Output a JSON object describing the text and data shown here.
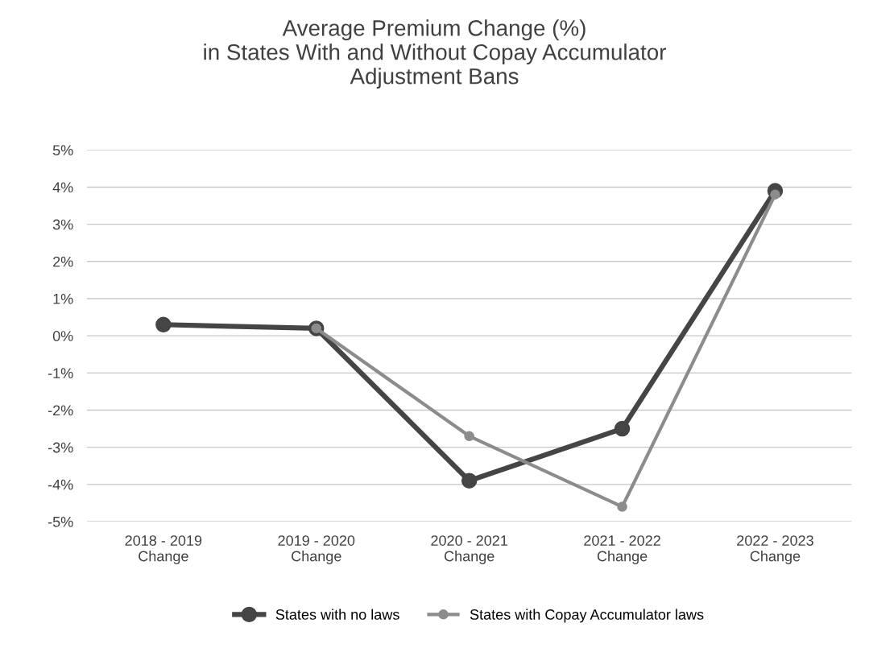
{
  "chart_data": {
    "type": "line",
    "title": "Average Premium Change (%)\nin States With and Without Copay Accumulator\nAdjustment Bans",
    "categories": [
      "2018 - 2019\nChange",
      "2019 - 2020\nChange",
      "2020 - 2021\nChange",
      "2021 - 2022\nChange",
      "2022 - 2023\nChange"
    ],
    "series": [
      {
        "name": "States with no laws",
        "color": "#454545",
        "values": [
          0.3,
          0.2,
          -3.9,
          -2.5,
          3.9
        ]
      },
      {
        "name": "States with Copay Accumulator laws",
        "color": "#8c8c8c",
        "values": [
          null,
          0.2,
          -2.7,
          -4.6,
          3.8
        ]
      }
    ],
    "ylim": [
      -5,
      5
    ],
    "yticks": [
      {
        "value": -5,
        "label": "-5%"
      },
      {
        "value": -4,
        "label": "-4%"
      },
      {
        "value": -3,
        "label": "-3%"
      },
      {
        "value": -2,
        "label": "-2%"
      },
      {
        "value": -1,
        "label": "-1%"
      },
      {
        "value": 0,
        "label": "0%"
      },
      {
        "value": 1,
        "label": "1%"
      },
      {
        "value": 2,
        "label": "2%"
      },
      {
        "value": 3,
        "label": "3%"
      },
      {
        "value": 4,
        "label": "4%"
      },
      {
        "value": 5,
        "label": "5%"
      }
    ],
    "grid": "y",
    "legend": "bottom",
    "marker": "circle",
    "line_style": "solid"
  }
}
